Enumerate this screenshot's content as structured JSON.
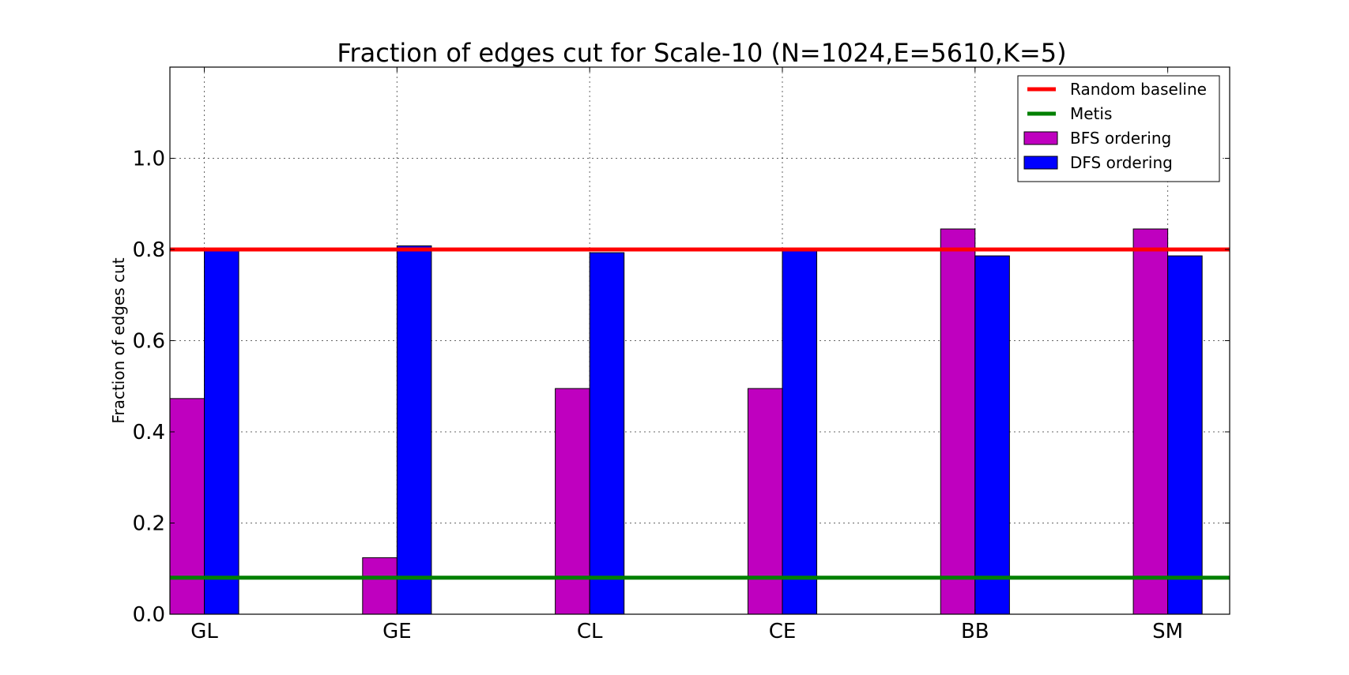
{
  "chart_data": {
    "type": "bar",
    "title": "Fraction of edges cut for Scale-10  (N=1024,E=5610,K=5)",
    "xlabel": "",
    "ylabel": "Fraction of edges cut",
    "categories": [
      "GL",
      "GE",
      "CL",
      "CE",
      "BB",
      "SM"
    ],
    "series": [
      {
        "name": "BFS ordering",
        "color": "#bf00bf",
        "values": [
          0.473,
          0.124,
          0.495,
          0.495,
          0.845,
          0.845
        ]
      },
      {
        "name": "DFS ordering",
        "color": "#0000ff",
        "values": [
          0.797,
          0.808,
          0.793,
          0.797,
          0.786,
          0.786
        ]
      }
    ],
    "reference_lines": [
      {
        "name": "Random baseline",
        "color": "#ff0000",
        "value": 0.8
      },
      {
        "name": "Metis",
        "color": "#008000",
        "value": 0.08
      }
    ],
    "ylim": [
      0.0,
      1.2
    ],
    "yticks": [
      "0.0",
      "0.2",
      "0.4",
      "0.6",
      "0.8",
      "1.0"
    ],
    "grid": true,
    "legend_position": "top-right"
  }
}
